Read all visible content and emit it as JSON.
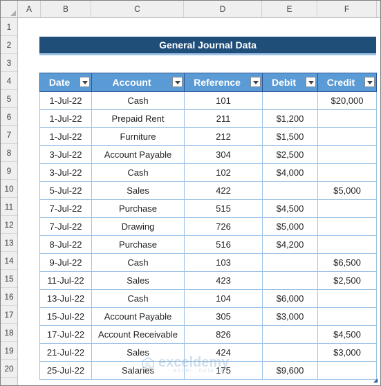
{
  "sheet": {
    "columns": [
      "A",
      "B",
      "C",
      "D",
      "E",
      "F"
    ],
    "rows": [
      "1",
      "2",
      "3",
      "4",
      "5",
      "6",
      "7",
      "8",
      "9",
      "10",
      "11",
      "12",
      "13",
      "14",
      "15",
      "16",
      "17",
      "18",
      "19",
      "20"
    ]
  },
  "title": "General Journal Data",
  "table": {
    "headers": [
      "Date",
      "Account",
      "Reference",
      "Debit",
      "Credit"
    ],
    "rows": [
      {
        "date": "1-Jul-22",
        "account": "Cash",
        "reference": "101",
        "debit": "",
        "credit": "$20,000"
      },
      {
        "date": "1-Jul-22",
        "account": "Prepaid Rent",
        "reference": "211",
        "debit": "$1,200",
        "credit": ""
      },
      {
        "date": "1-Jul-22",
        "account": "Furniture",
        "reference": "212",
        "debit": "$1,500",
        "credit": ""
      },
      {
        "date": "3-Jul-22",
        "account": "Account Payable",
        "reference": "304",
        "debit": "$2,500",
        "credit": ""
      },
      {
        "date": "3-Jul-22",
        "account": "Cash",
        "reference": "102",
        "debit": "$4,000",
        "credit": ""
      },
      {
        "date": "5-Jul-22",
        "account": "Sales",
        "reference": "422",
        "debit": "",
        "credit": "$5,000"
      },
      {
        "date": "7-Jul-22",
        "account": "Purchase",
        "reference": "515",
        "debit": "$4,500",
        "credit": ""
      },
      {
        "date": "7-Jul-22",
        "account": "Drawing",
        "reference": "726",
        "debit": "$5,000",
        "credit": ""
      },
      {
        "date": "8-Jul-22",
        "account": "Purchase",
        "reference": "516",
        "debit": "$4,200",
        "credit": ""
      },
      {
        "date": "9-Jul-22",
        "account": "Cash",
        "reference": "103",
        "debit": "",
        "credit": "$6,500"
      },
      {
        "date": "11-Jul-22",
        "account": "Sales",
        "reference": "423",
        "debit": "",
        "credit": "$2,500"
      },
      {
        "date": "13-Jul-22",
        "account": "Cash",
        "reference": "104",
        "debit": "$6,000",
        "credit": ""
      },
      {
        "date": "15-Jul-22",
        "account": "Account Payable",
        "reference": "305",
        "debit": "$3,000",
        "credit": ""
      },
      {
        "date": "17-Jul-22",
        "account": "Account Receivable",
        "reference": "826",
        "debit": "",
        "credit": "$4,500"
      },
      {
        "date": "21-Jul-22",
        "account": "Sales",
        "reference": "424",
        "debit": "",
        "credit": "$3,000"
      },
      {
        "date": "25-Jul-22",
        "account": "Salaries",
        "reference": "175",
        "debit": "$9,600",
        "credit": ""
      }
    ]
  },
  "watermark": {
    "name": "exceldemy",
    "tagline": "EXCEL · DATA · BI"
  },
  "icons": {
    "filter": "filter-dropdown-icon",
    "logo": "exceldemy-logo-icon"
  }
}
